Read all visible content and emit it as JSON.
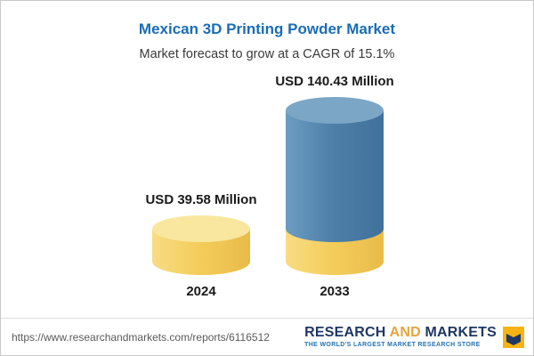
{
  "title": "Mexican 3D Printing Powder Market",
  "subtitle": "Market forecast to grow at a CAGR of 15.1%",
  "chart_data": {
    "type": "bar",
    "bar_style": "3d-cylinder",
    "categories": [
      "2024",
      "2033"
    ],
    "values": [
      39.58,
      140.43
    ],
    "unit": "USD Million",
    "value_labels": [
      "USD 39.58 Million",
      "USD 140.43 Million"
    ],
    "cagr_percent": 15.1,
    "grid": false,
    "legend": "none",
    "stacked_note": "2033 cylinder has a yellow base equal to the 2024 value with blue growth portion above",
    "colors": {
      "title_blue": "#1A6DB6",
      "bar_yellow": "#F4CE5C",
      "bar_yellow_top": "#F9E7A0",
      "bar_blue": "#4E80A9",
      "bar_blue_top": "#7BA6C6",
      "label_text": "#1A1A1A"
    }
  },
  "footer": {
    "report_url": "https://www.researchandmarkets.com/reports/6116512",
    "brand": {
      "word_research": "RESEARCH",
      "word_and": "AND",
      "word_markets": "MARKETS",
      "tagline": "THE WORLD'S LARGEST MARKET RESEARCH STORE",
      "navy": "#1F3864",
      "gold": "#E8A33D"
    }
  }
}
